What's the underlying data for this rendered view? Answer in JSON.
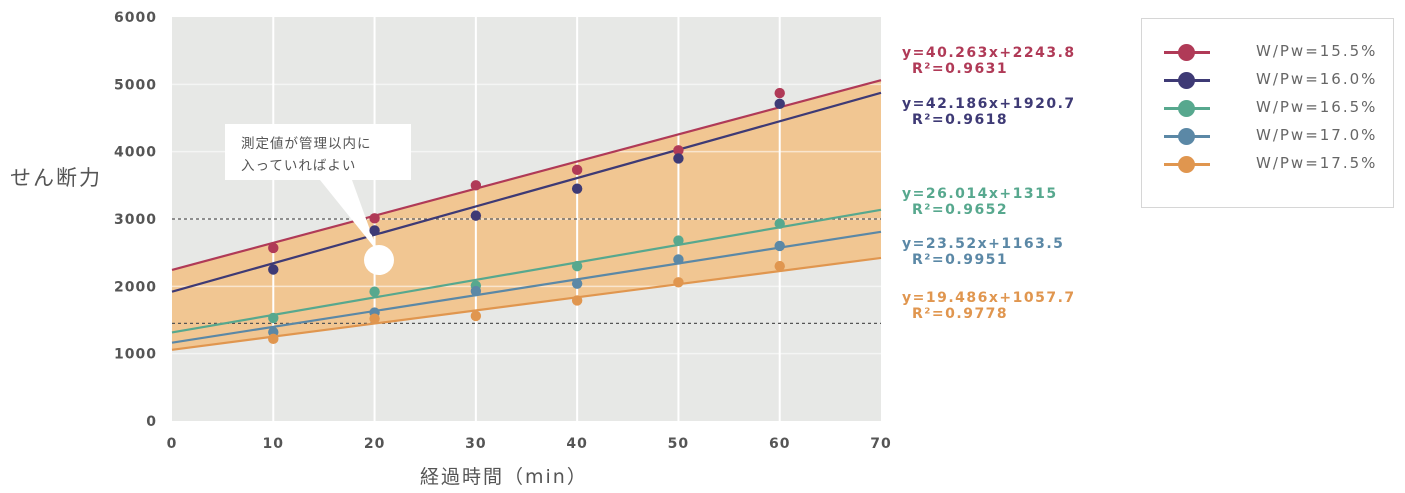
{
  "chart_data": {
    "type": "scatter",
    "ylabel": "せん断力",
    "xlabel": "経過時間（min）",
    "xlim": [
      0,
      70
    ],
    "ylim": [
      0,
      6000
    ],
    "x_ticks": [
      "0",
      "10",
      "20",
      "30",
      "40",
      "50",
      "60",
      "70"
    ],
    "y_ticks": [
      "0",
      "1000",
      "2000",
      "3000",
      "4000",
      "5000",
      "6000"
    ],
    "x": [
      10,
      20,
      30,
      40,
      50,
      60
    ],
    "control_lines": [
      3000,
      1450
    ],
    "shaded_band": "between W/Pw=15.5% and W/Pw=17.5% trend lines",
    "annotation": [
      "測定値が管理以内に",
      "入っていればよい"
    ],
    "series": [
      {
        "name": "W/Pw=15.5%",
        "color": "#b03a57",
        "values": [
          2570,
          3010,
          3500,
          3730,
          4020,
          4870
        ],
        "slope": 40.263,
        "intercept": 2243.8,
        "equation": "y=40.263x+2243.8",
        "r2": "R²=0.9631"
      },
      {
        "name": "W/Pw=16.0%",
        "color": "#3e3a75",
        "values": [
          2250,
          2830,
          3050,
          3450,
          3900,
          4710
        ],
        "slope": 42.186,
        "intercept": 1920.7,
        "equation": "y=42.186x+1920.7",
        "r2": "R²=0.9618"
      },
      {
        "name": "W/Pw=16.5%",
        "color": "#57a88e",
        "values": [
          1530,
          1920,
          2010,
          2300,
          2680,
          2930
        ],
        "slope": 26.014,
        "intercept": 1315,
        "equation": "y=26.014x+1315",
        "r2": "R²=0.9652"
      },
      {
        "name": "W/Pw=17.0%",
        "color": "#5b88a6",
        "values": [
          1320,
          1610,
          1930,
          2040,
          2400,
          2600
        ],
        "slope": 23.52,
        "intercept": 1163.5,
        "equation": "y=23.52x+1163.5",
        "r2": "R²=0.9951"
      },
      {
        "name": "W/Pw=17.5%",
        "color": "#e0964f",
        "values": [
          1220,
          1520,
          1560,
          1790,
          2060,
          2300
        ],
        "slope": 19.486,
        "intercept": 1057.7,
        "equation": "y=19.486x+1057.7",
        "r2": "R²=0.9778"
      }
    ]
  }
}
